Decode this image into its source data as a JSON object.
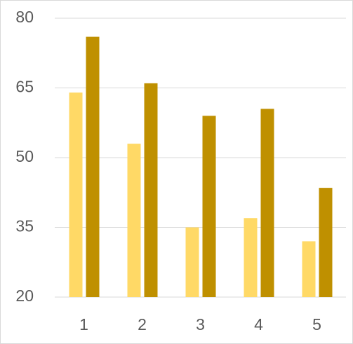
{
  "chart_data": {
    "type": "bar",
    "categories": [
      "1",
      "2",
      "3",
      "4",
      "5"
    ],
    "series": [
      {
        "color": "#ffd966",
        "values": [
          64,
          53,
          35,
          37,
          32
        ]
      },
      {
        "color": "#bf9000",
        "values": [
          76,
          66,
          59,
          60.5,
          43.5
        ]
      }
    ],
    "ylim": [
      20,
      80
    ],
    "yticks": [
      20,
      35,
      50,
      65,
      80
    ],
    "grid": true
  }
}
